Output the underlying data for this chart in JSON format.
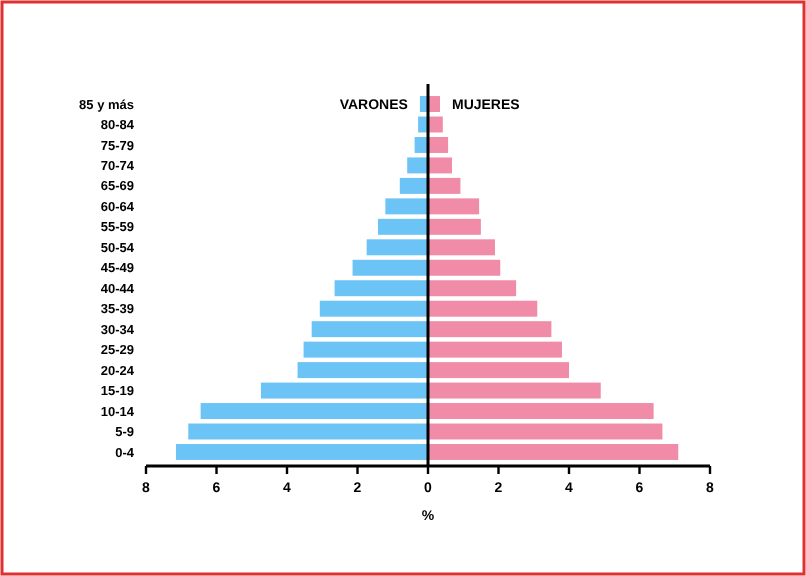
{
  "chart_data": {
    "type": "bar",
    "orientation": "horizontal",
    "stacked": true,
    "xlabel": "%",
    "categories": [
      "85 y más",
      "80-84",
      "75-79",
      "70-74",
      "65-69",
      "60-64",
      "55-59",
      "50-54",
      "45-49",
      "40-44",
      "35-39",
      "30-34",
      "25-29",
      "20-24",
      "15-19",
      "10-14",
      "5-9",
      "0-4"
    ],
    "series": [
      {
        "name": "VARONES",
        "color": "#6cc3f5",
        "values": [
          -0.23,
          -0.28,
          -0.38,
          -0.59,
          -0.8,
          -1.21,
          -1.42,
          -1.74,
          -2.14,
          -2.65,
          -3.07,
          -3.3,
          -3.53,
          -3.7,
          -4.74,
          -6.45,
          -6.8,
          -7.15
        ]
      },
      {
        "name": "MUJERES",
        "color": "#f08ca8",
        "values": [
          0.34,
          0.42,
          0.57,
          0.68,
          0.92,
          1.45,
          1.5,
          1.9,
          2.05,
          2.5,
          3.1,
          3.5,
          3.8,
          4.0,
          4.9,
          6.4,
          6.65,
          7.1
        ]
      }
    ],
    "xlim": [
      -8,
      8
    ],
    "xticks": [
      {
        "value": -8,
        "label": "8"
      },
      {
        "value": -6,
        "label": "6"
      },
      {
        "value": -4,
        "label": "4"
      },
      {
        "value": -2,
        "label": "2"
      },
      0,
      2,
      4,
      6,
      8
    ]
  }
}
